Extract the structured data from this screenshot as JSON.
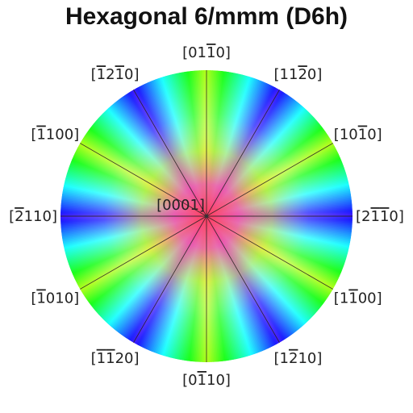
{
  "title": "Hexagonal 6/mmm (D6h)",
  "center_label": "[0001]",
  "directions": [
    {
      "angle_deg": 90,
      "parts": [
        [
          "[0",
          ""
        ],
        [
          "1",
          ""
        ],
        [
          "1",
          "bar"
        ],
        [
          "0]",
          ""
        ]
      ]
    },
    {
      "angle_deg": 60,
      "parts": [
        [
          "[11",
          ""
        ],
        [
          "2",
          "bar"
        ],
        [
          "0]",
          ""
        ]
      ]
    },
    {
      "angle_deg": 30,
      "parts": [
        [
          "[10",
          ""
        ],
        [
          "1",
          "bar"
        ],
        [
          "0]",
          ""
        ]
      ]
    },
    {
      "angle_deg": 0,
      "parts": [
        [
          "[2",
          ""
        ],
        [
          "1",
          "bar"
        ],
        [
          "1",
          "bar"
        ],
        [
          "0]",
          ""
        ]
      ]
    },
    {
      "angle_deg": -30,
      "parts": [
        [
          "[1",
          ""
        ],
        [
          "1",
          "bar"
        ],
        [
          "00]",
          ""
        ]
      ]
    },
    {
      "angle_deg": -60,
      "parts": [
        [
          "[1",
          ""
        ],
        [
          "2",
          "bar"
        ],
        [
          "10]",
          ""
        ]
      ]
    },
    {
      "angle_deg": -90,
      "parts": [
        [
          "[0",
          ""
        ],
        [
          "1",
          "bar"
        ],
        [
          "10]",
          ""
        ]
      ]
    },
    {
      "angle_deg": -120,
      "parts": [
        [
          "[",
          ""
        ],
        [
          "1",
          "bar"
        ],
        [
          "1",
          "bar"
        ],
        [
          "20]",
          ""
        ]
      ]
    },
    {
      "angle_deg": -150,
      "parts": [
        [
          "[",
          ""
        ],
        [
          "1",
          "bar"
        ],
        [
          "010]",
          ""
        ]
      ]
    },
    {
      "angle_deg": 180,
      "parts": [
        [
          "[",
          ""
        ],
        [
          "2",
          "bar"
        ],
        [
          "110]",
          ""
        ]
      ]
    },
    {
      "angle_deg": 150,
      "parts": [
        [
          "[",
          ""
        ],
        [
          "1",
          "bar"
        ],
        [
          "100]",
          ""
        ]
      ]
    },
    {
      "angle_deg": 120,
      "parts": [
        [
          "[",
          ""
        ],
        [
          "1",
          "bar"
        ],
        [
          "2",
          ""
        ],
        [
          "1",
          "bar"
        ],
        [
          "0]",
          ""
        ]
      ]
    }
  ],
  "mirror_lines_deg": [
    0,
    30,
    60,
    90,
    120,
    150
  ]
}
